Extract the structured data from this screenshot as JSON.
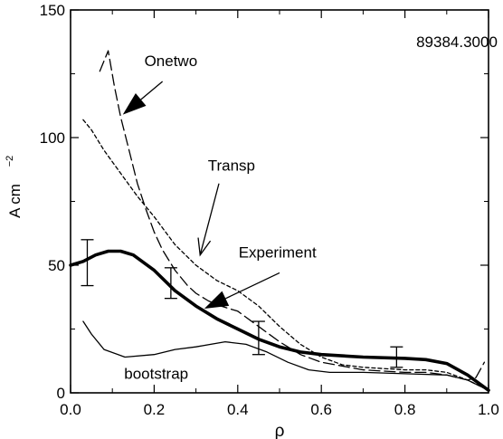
{
  "chart_data": {
    "type": "line",
    "shot_label": "89384.3000",
    "xlabel": "ρ",
    "ylabel_main": "A cm",
    "ylabel_exp": "−2",
    "xlim": [
      0.0,
      1.0
    ],
    "ylim": [
      0,
      150
    ],
    "xticks": [
      {
        "v": 0.0,
        "label": "0.0"
      },
      {
        "v": 0.2,
        "label": "0.2"
      },
      {
        "v": 0.4,
        "label": "0.4"
      },
      {
        "v": 0.6,
        "label": "0.6"
      },
      {
        "v": 0.8,
        "label": "0.8"
      },
      {
        "v": 1.0,
        "label": "1.0"
      }
    ],
    "yticks": [
      {
        "v": 0,
        "label": "0"
      },
      {
        "v": 50,
        "label": "50"
      },
      {
        "v": 100,
        "label": "100"
      },
      {
        "v": 150,
        "label": "150"
      }
    ],
    "series": [
      {
        "name": "Experiment",
        "style": "thick-solid",
        "points": [
          [
            0.0,
            50
          ],
          [
            0.03,
            51.5
          ],
          [
            0.06,
            54
          ],
          [
            0.09,
            55.5
          ],
          [
            0.12,
            55.5
          ],
          [
            0.15,
            54
          ],
          [
            0.2,
            48
          ],
          [
            0.25,
            40
          ],
          [
            0.3,
            34
          ],
          [
            0.35,
            29
          ],
          [
            0.4,
            25
          ],
          [
            0.45,
            21
          ],
          [
            0.5,
            18
          ],
          [
            0.55,
            16
          ],
          [
            0.6,
            15
          ],
          [
            0.7,
            14
          ],
          [
            0.8,
            13.5
          ],
          [
            0.85,
            13
          ],
          [
            0.9,
            11.5
          ],
          [
            0.95,
            7
          ],
          [
            1.0,
            1
          ]
        ]
      },
      {
        "name": "Onetwo",
        "style": "long-dash",
        "points": [
          [
            0.07,
            126
          ],
          [
            0.09,
            134
          ],
          [
            0.105,
            120
          ],
          [
            0.12,
            108
          ],
          [
            0.14,
            95
          ],
          [
            0.16,
            82
          ],
          [
            0.18,
            72
          ],
          [
            0.2,
            63
          ],
          [
            0.22,
            56
          ],
          [
            0.25,
            48
          ],
          [
            0.28,
            42
          ],
          [
            0.3,
            39
          ],
          [
            0.33,
            36
          ],
          [
            0.36,
            34
          ],
          [
            0.4,
            32
          ],
          [
            0.45,
            26
          ],
          [
            0.5,
            20
          ],
          [
            0.55,
            15
          ],
          [
            0.6,
            12
          ],
          [
            0.7,
            9
          ],
          [
            0.8,
            8
          ],
          [
            0.85,
            8
          ],
          [
            0.9,
            7
          ],
          [
            0.95,
            5
          ],
          [
            0.97,
            6
          ],
          [
            0.99,
            12
          ]
        ]
      },
      {
        "name": "Transp",
        "style": "short-dash",
        "points": [
          [
            0.03,
            107
          ],
          [
            0.05,
            103
          ],
          [
            0.08,
            95
          ],
          [
            0.12,
            86
          ],
          [
            0.16,
            77
          ],
          [
            0.2,
            69
          ],
          [
            0.25,
            58
          ],
          [
            0.3,
            50
          ],
          [
            0.35,
            44
          ],
          [
            0.4,
            40
          ],
          [
            0.45,
            34
          ],
          [
            0.5,
            26
          ],
          [
            0.55,
            19
          ],
          [
            0.6,
            14
          ],
          [
            0.65,
            11
          ],
          [
            0.7,
            10
          ],
          [
            0.8,
            9
          ],
          [
            0.85,
            9
          ],
          [
            0.9,
            8
          ],
          [
            0.95,
            5
          ],
          [
            1.0,
            1
          ]
        ]
      },
      {
        "name": "bootstrap",
        "style": "thin-solid",
        "points": [
          [
            0.03,
            28
          ],
          [
            0.05,
            23
          ],
          [
            0.08,
            17
          ],
          [
            0.13,
            14
          ],
          [
            0.2,
            15
          ],
          [
            0.25,
            17
          ],
          [
            0.3,
            18
          ],
          [
            0.37,
            20
          ],
          [
            0.42,
            19
          ],
          [
            0.47,
            16
          ],
          [
            0.52,
            12
          ],
          [
            0.57,
            9
          ],
          [
            0.62,
            8
          ],
          [
            0.7,
            8
          ],
          [
            0.8,
            7.5
          ],
          [
            0.9,
            7
          ],
          [
            0.95,
            5
          ],
          [
            1.0,
            1
          ]
        ]
      }
    ],
    "error_bars": [
      {
        "x": 0.04,
        "y": 51,
        "low": 42,
        "high": 60
      },
      {
        "x": 0.24,
        "y": 43,
        "low": 37,
        "high": 49
      },
      {
        "x": 0.45,
        "y": 21,
        "low": 15,
        "high": 28
      },
      {
        "x": 0.78,
        "y": 14,
        "low": 10,
        "high": 18
      }
    ],
    "annotations": [
      {
        "text": "Onetwo",
        "tx": 0.24,
        "ty": 128,
        "arrow_from": [
          0.22,
          122
        ],
        "arrow_to": [
          0.125,
          109
        ],
        "head": "filled"
      },
      {
        "text": "Transp",
        "tx": 0.385,
        "ty": 87,
        "arrow_from": [
          0.355,
          82
        ],
        "arrow_to": [
          0.31,
          54
        ],
        "head": "open"
      },
      {
        "text": "Experiment",
        "tx": 0.495,
        "ty": 53,
        "arrow_from": [
          0.5,
          47
        ],
        "arrow_to": [
          0.32,
          33
        ],
        "head": "filled"
      },
      {
        "text": "bootstrap",
        "tx": 0.205,
        "ty": 5.5,
        "arrow_from": null,
        "arrow_to": null,
        "head": "none"
      }
    ]
  }
}
